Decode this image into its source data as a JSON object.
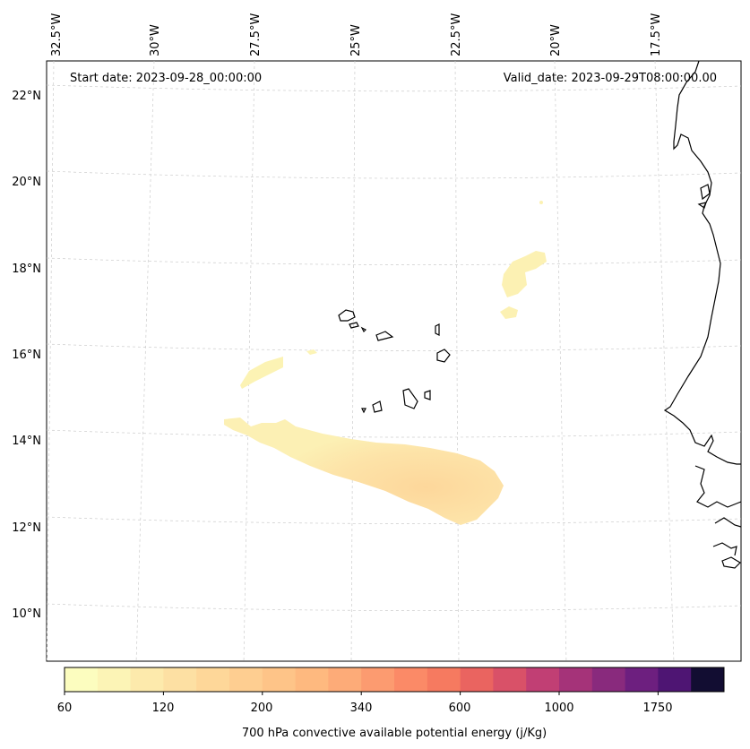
{
  "map": {
    "start_label": "Start date: 2023-09-28_00:00:00",
    "valid_label": "Valid_date: 2023-09-29T08:00:00.00",
    "lon_labels": [
      "32.5°W",
      "30°W",
      "27.5°W",
      "25°W",
      "22.5°W",
      "20°W",
      "17.5°W"
    ],
    "lat_labels": [
      "22°N",
      "20°N",
      "18°N",
      "16°N",
      "14°N",
      "12°N",
      "10°N"
    ],
    "colors": {
      "coast": "#000000",
      "grid": "#cccccc"
    }
  },
  "colorbar": {
    "title": "700 hPa convective available potential energy (j/Kg)",
    "ticks": [
      "60",
      "120",
      "200",
      "340",
      "600",
      "1000",
      "1750"
    ],
    "colors": [
      "#fcfdbf",
      "#fcf4b6",
      "#fdeaac",
      "#fde0a3",
      "#fed799",
      "#fece91",
      "#fec488",
      "#feb97f",
      "#fdab78",
      "#fc9b70",
      "#fb8a67",
      "#f67a60",
      "#ea6460",
      "#d95168",
      "#c13f74",
      "#a53379",
      "#892a7d",
      "#6d1f7f",
      "#4e1573",
      "#120d32"
    ]
  }
}
